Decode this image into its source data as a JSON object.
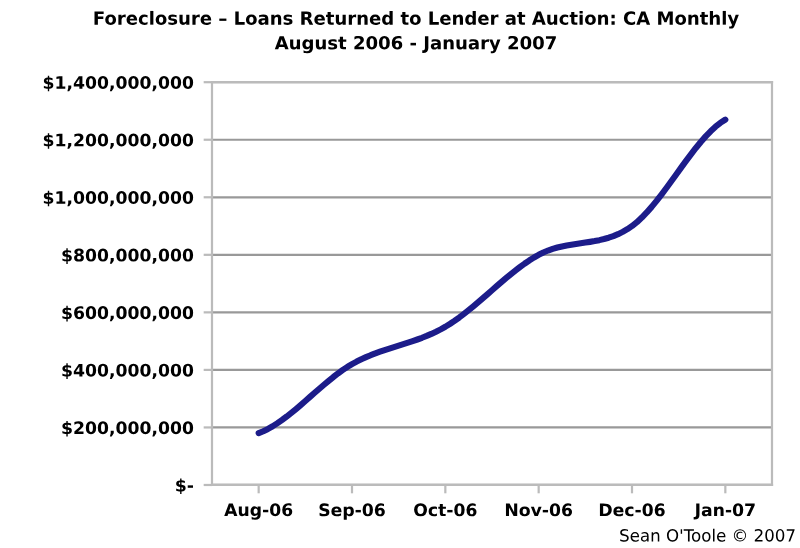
{
  "chart_data": {
    "type": "line",
    "title": "Foreclosure – Loans Returned to Lender at Auction: CA Monthly",
    "subtitle": "August 2006 - January 2007",
    "categories": [
      "Aug-06",
      "Sep-06",
      "Oct-06",
      "Nov-06",
      "Dec-06",
      "Jan-07"
    ],
    "series": [
      {
        "color": "#1c1c8a",
        "values": [
          180000000,
          420000000,
          550000000,
          800000000,
          900000000,
          1270000000
        ]
      }
    ],
    "ylim": [
      0,
      1400000000
    ],
    "yticks": [
      {
        "value": 0,
        "label": "$-"
      },
      {
        "value": 200000000,
        "label": "$200,000,000"
      },
      {
        "value": 400000000,
        "label": "$400,000,000"
      },
      {
        "value": 600000000,
        "label": "$600,000,000"
      },
      {
        "value": 800000000,
        "label": "$800,000,000"
      },
      {
        "value": 1000000000,
        "label": "$1,000,000,000"
      },
      {
        "value": 1200000000,
        "label": "$1,200,000,000"
      },
      {
        "value": 1400000000,
        "label": "$1,400,000,000"
      }
    ],
    "grid": "y",
    "marker": "none",
    "line_style": "solid",
    "annotations": [
      "Sean O'Toole © 2007"
    ]
  }
}
